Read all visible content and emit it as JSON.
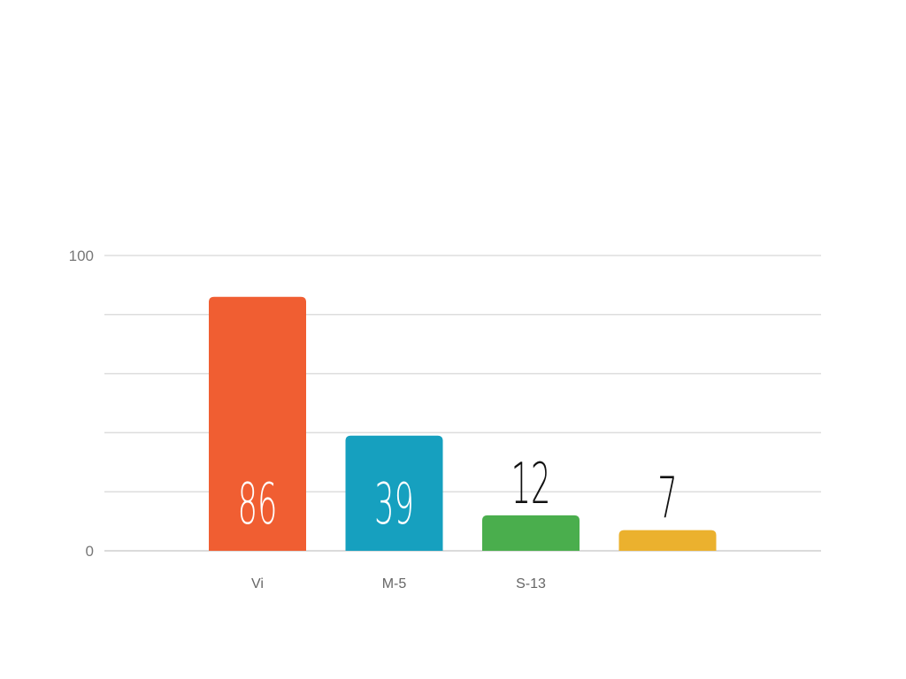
{
  "chart_data": {
    "type": "bar",
    "categories": [
      "Vi",
      "M-5",
      "S-13",
      ""
    ],
    "values": [
      86,
      39,
      12,
      7
    ],
    "colors": [
      "#f05e32",
      "#16a0bf",
      "#4aae4d",
      "#ebb12e"
    ],
    "value_labels": [
      "86",
      "39",
      "12",
      "7"
    ],
    "value_label_position": [
      "inside",
      "inside",
      "above",
      "above"
    ],
    "ylim": [
      0,
      100
    ],
    "yticks": [
      "0",
      "100"
    ],
    "gridlines": 5,
    "grid": true,
    "legend": "none",
    "title": "",
    "xlabel": "",
    "ylabel": ""
  }
}
